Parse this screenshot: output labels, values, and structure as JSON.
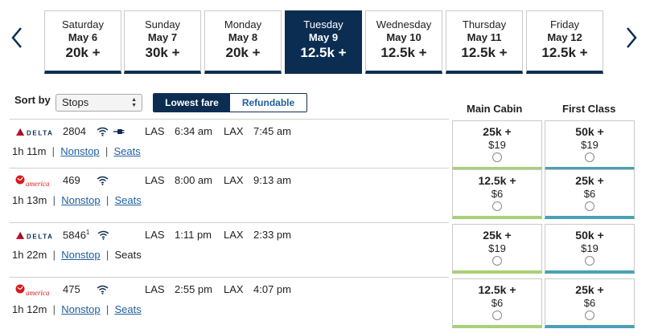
{
  "dates": [
    {
      "day": "Saturday",
      "date": "May 6",
      "price": "20k +"
    },
    {
      "day": "Sunday",
      "date": "May 7",
      "price": "30k +"
    },
    {
      "day": "Monday",
      "date": "May 8",
      "price": "20k +"
    },
    {
      "day": "Tuesday",
      "date": "May 9",
      "price": "12.5k +",
      "selected": true
    },
    {
      "day": "Wednesday",
      "date": "May 10",
      "price": "12.5k +"
    },
    {
      "day": "Thursday",
      "date": "May 11",
      "price": "12.5k +"
    },
    {
      "day": "Friday",
      "date": "May 12",
      "price": "12.5k +"
    }
  ],
  "sort": {
    "label": "Sort by",
    "value": "Stops"
  },
  "fare_toggle": {
    "active": "Lowest fare",
    "inactive": "Refundable"
  },
  "columns": {
    "main": "Main Cabin",
    "first": "First Class"
  },
  "colors": {
    "navy": "#0b2d52",
    "link": "#1f5f9f",
    "main_cabin_accent": "#a9d07a",
    "first_class_accent": "#4aa0b5"
  },
  "flights": [
    {
      "airline_icon": "delta-logo",
      "flight": "2804",
      "footnote": "",
      "amenities": [
        "wifi-icon",
        "power-icon"
      ],
      "from": "LAS",
      "dep": "6:34 am",
      "to": "LAX",
      "arr": "7:45 am",
      "duration": "1h 11m",
      "stops": "Nonstop",
      "seats": "Seats",
      "seats_link": true,
      "main": {
        "points": "25k +",
        "tax": "$19"
      },
      "first": {
        "points": "50k +",
        "tax": "$19"
      }
    },
    {
      "airline_icon": "virgin-america-logo",
      "flight": "469",
      "footnote": "",
      "amenities": [
        "wifi-icon"
      ],
      "from": "LAS",
      "dep": "8:00 am",
      "to": "LAX",
      "arr": "9:13 am",
      "duration": "1h 13m",
      "stops": "Nonstop",
      "seats": "Seats",
      "seats_link": true,
      "main": {
        "points": "12.5k +",
        "tax": "$6"
      },
      "first": {
        "points": "25k +",
        "tax": "$6"
      }
    },
    {
      "airline_icon": "delta-logo",
      "flight": "5846",
      "footnote": "1",
      "amenities": [
        "wifi-icon"
      ],
      "from": "LAS",
      "dep": "1:11 pm",
      "to": "LAX",
      "arr": "2:33 pm",
      "duration": "1h 22m",
      "stops": "Nonstop",
      "seats": "Seats",
      "seats_link": false,
      "main": {
        "points": "25k +",
        "tax": "$19"
      },
      "first": {
        "points": "50k +",
        "tax": "$19"
      }
    },
    {
      "airline_icon": "virgin-america-logo",
      "flight": "475",
      "footnote": "",
      "amenities": [
        "wifi-icon"
      ],
      "from": "LAS",
      "dep": "2:55 pm",
      "to": "LAX",
      "arr": "4:07 pm",
      "duration": "1h 12m",
      "stops": "Nonstop",
      "seats": "Seats",
      "seats_link": true,
      "main": {
        "points": "12.5k +",
        "tax": "$6"
      },
      "first": {
        "points": "25k +",
        "tax": "$6"
      }
    }
  ],
  "logos": {
    "delta": "DELTA",
    "virgin": "america"
  }
}
